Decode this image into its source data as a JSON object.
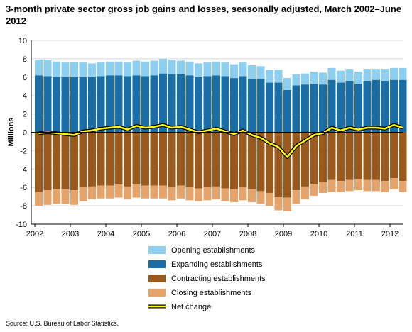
{
  "chart_data": {
    "type": "bar",
    "subtype": "stacked-bar-with-line",
    "title": "3-month private sector gross job gains and losses, seasonally adjusted, March 2002–June 2012",
    "ylabel": "Millions",
    "xlabel": "",
    "ylim": [
      -10,
      10
    ],
    "yticks": [
      -10,
      -8,
      -6,
      -4,
      -2,
      0,
      2,
      4,
      6,
      8,
      10
    ],
    "x_year_labels": [
      "2002",
      "2003",
      "2004",
      "2005",
      "2006",
      "2007",
      "2008",
      "2009",
      "2010",
      "2011",
      "2012"
    ],
    "grid": "horizontal",
    "legend_position": "bottom-center",
    "quarters": [
      "2002 Q1",
      "2002 Q2",
      "2002 Q3",
      "2002 Q4",
      "2003 Q1",
      "2003 Q2",
      "2003 Q3",
      "2003 Q4",
      "2004 Q1",
      "2004 Q2",
      "2004 Q3",
      "2004 Q4",
      "2005 Q1",
      "2005 Q2",
      "2005 Q3",
      "2005 Q4",
      "2006 Q1",
      "2006 Q2",
      "2006 Q3",
      "2006 Q4",
      "2007 Q1",
      "2007 Q2",
      "2007 Q3",
      "2007 Q4",
      "2008 Q1",
      "2008 Q2",
      "2008 Q3",
      "2008 Q4",
      "2009 Q1",
      "2009 Q2",
      "2009 Q3",
      "2009 Q4",
      "2010 Q1",
      "2010 Q2",
      "2010 Q3",
      "2010 Q4",
      "2011 Q1",
      "2011 Q2",
      "2011 Q3",
      "2011 Q4",
      "2012 Q1",
      "2012 Q2"
    ],
    "series": [
      {
        "name": "Opening establishments",
        "color": "#8ecff0",
        "values": [
          1.7,
          1.8,
          1.7,
          1.6,
          1.6,
          1.6,
          1.5,
          1.5,
          1.5,
          1.5,
          1.5,
          1.6,
          1.6,
          1.6,
          1.6,
          1.6,
          1.5,
          1.5,
          1.5,
          1.5,
          1.5,
          1.5,
          1.5,
          1.5,
          1.5,
          1.4,
          1.4,
          1.4,
          1.3,
          1.2,
          1.2,
          1.3,
          1.3,
          1.3,
          1.3,
          1.3,
          1.3,
          1.3,
          1.2,
          1.3,
          1.3,
          1.3
        ]
      },
      {
        "name": "Expanding establishments",
        "color": "#1a6ea5",
        "values": [
          6.2,
          6.1,
          6.0,
          6.0,
          6.0,
          6.0,
          6.0,
          6.1,
          6.2,
          6.2,
          6.1,
          6.2,
          6.1,
          6.2,
          6.4,
          6.3,
          6.3,
          6.2,
          6.0,
          6.1,
          6.2,
          6.1,
          5.9,
          6.1,
          5.8,
          5.8,
          5.4,
          5.4,
          4.6,
          5.1,
          5.2,
          5.3,
          5.2,
          5.7,
          5.4,
          5.6,
          5.3,
          5.6,
          5.7,
          5.6,
          5.7,
          5.7
        ]
      },
      {
        "name": "Contracting establishments",
        "color": "#9a5a1e",
        "values": [
          -6.5,
          -6.3,
          -6.2,
          -6.2,
          -6.3,
          -6.0,
          -5.9,
          -5.8,
          -5.8,
          -5.7,
          -5.9,
          -5.7,
          -5.8,
          -5.8,
          -5.8,
          -6.0,
          -5.8,
          -6.0,
          -6.1,
          -6.0,
          -5.9,
          -6.1,
          -6.2,
          -6.0,
          -6.2,
          -6.4,
          -6.6,
          -7.0,
          -7.1,
          -6.3,
          -5.9,
          -5.6,
          -5.4,
          -5.2,
          -5.3,
          -5.2,
          -5.1,
          -5.2,
          -5.2,
          -5.3,
          -5.0,
          -5.3
        ]
      },
      {
        "name": "Closing establishments",
        "color": "#e4a46c",
        "values": [
          -1.5,
          -1.6,
          -1.6,
          -1.6,
          -1.6,
          -1.5,
          -1.4,
          -1.4,
          -1.4,
          -1.4,
          -1.4,
          -1.4,
          -1.4,
          -1.4,
          -1.4,
          -1.4,
          -1.4,
          -1.4,
          -1.4,
          -1.4,
          -1.4,
          -1.4,
          -1.4,
          -1.4,
          -1.4,
          -1.4,
          -1.4,
          -1.5,
          -1.5,
          -1.5,
          -1.4,
          -1.3,
          -1.2,
          -1.3,
          -1.2,
          -1.2,
          -1.2,
          -1.2,
          -1.2,
          -1.2,
          -1.2,
          -1.2
        ]
      },
      {
        "name": "Net change",
        "color": "#ffff00",
        "kind": "line",
        "values": [
          -0.1,
          0.0,
          -0.1,
          -0.2,
          -0.3,
          0.1,
          0.2,
          0.4,
          0.5,
          0.6,
          0.3,
          0.7,
          0.5,
          0.6,
          0.8,
          0.5,
          0.6,
          0.3,
          0.0,
          0.2,
          0.4,
          0.1,
          -0.2,
          0.2,
          -0.3,
          -0.6,
          -1.2,
          -1.6,
          -2.7,
          -1.5,
          -0.9,
          -0.3,
          -0.1,
          0.5,
          0.2,
          0.5,
          0.3,
          0.5,
          0.5,
          0.4,
          0.8,
          0.5
        ]
      }
    ]
  },
  "source": "Source: U.S. Bureau of Labor Statistics."
}
